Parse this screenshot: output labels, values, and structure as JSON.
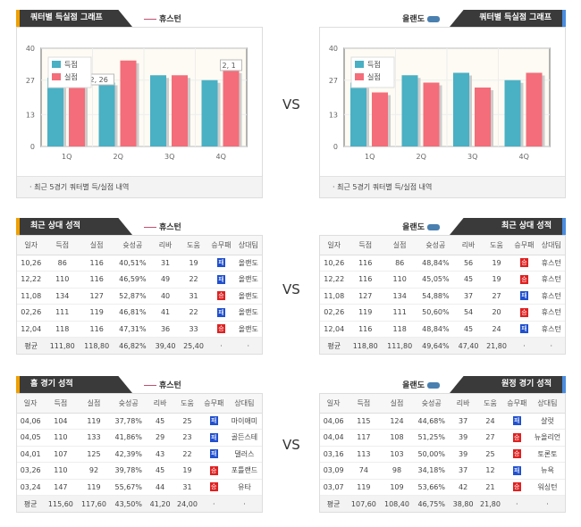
{
  "colors": {
    "scored": "#4ab0c4",
    "conceded": "#f46d7a",
    "win": "#e02020",
    "loss": "#2050d0"
  },
  "vs": "VS",
  "home_team": "휴스턴",
  "away_team": "올랜도",
  "chart_title": "쿼터별 득실점 그래프",
  "chart_footer": "· 최근 5경기 쿼터별 득/실점 내역",
  "columns": [
    "일자",
    "득점",
    "실점",
    "슛성공",
    "리바",
    "도움",
    "승무패",
    "상대팀"
  ],
  "chart_data": [
    {
      "type": "bar",
      "team": "휴스턴",
      "categories": [
        "1Q",
        "2Q",
        "3Q",
        "4Q"
      ],
      "yticks": [
        "0",
        "13",
        "27",
        "40"
      ],
      "ylim": [
        0,
        40
      ],
      "legend": [
        "득점",
        "실점"
      ],
      "series": [
        {
          "name": "득점",
          "values": [
            28,
            26,
            29,
            27
          ]
        },
        {
          "name": "실점",
          "values": [
            27,
            35,
            29,
            31
          ]
        }
      ],
      "annotations": [
        {
          "text": "2, 26",
          "cat": "2Q"
        },
        {
          "text": "2, 1",
          "cat": "4Q"
        }
      ]
    },
    {
      "type": "bar",
      "team": "올랜도",
      "categories": [
        "1Q",
        "2Q",
        "3Q",
        "4Q"
      ],
      "yticks": [
        "0",
        "13",
        "27",
        "40"
      ],
      "ylim": [
        0,
        40
      ],
      "legend": [
        "득점",
        "실점"
      ],
      "series": [
        {
          "name": "득점",
          "values": [
            26,
            29,
            30,
            27
          ]
        },
        {
          "name": "실점",
          "values": [
            22,
            26,
            24,
            30
          ]
        }
      ],
      "annotations": []
    }
  ],
  "tables": [
    {
      "title": "최근 상대 성적",
      "team": "휴스턴",
      "rows": [
        [
          "10,26",
          "86",
          "116",
          "40,51%",
          "31",
          "19",
          "패",
          "올랜도"
        ],
        [
          "12,22",
          "110",
          "116",
          "46,59%",
          "49",
          "22",
          "패",
          "올랜도"
        ],
        [
          "11,08",
          "134",
          "127",
          "52,87%",
          "40",
          "31",
          "승",
          "올랜도"
        ],
        [
          "02,26",
          "111",
          "119",
          "46,81%",
          "41",
          "22",
          "패",
          "올랜도"
        ],
        [
          "12,04",
          "118",
          "116",
          "47,31%",
          "36",
          "33",
          "승",
          "올랜도"
        ]
      ],
      "avg": [
        "평균",
        "111,80",
        "118,80",
        "46,82%",
        "39,40",
        "25,40",
        "·",
        "·"
      ]
    },
    {
      "title": "최근 상대 성적",
      "team": "올랜도",
      "rows": [
        [
          "10,26",
          "116",
          "86",
          "48,84%",
          "56",
          "19",
          "승",
          "휴스턴"
        ],
        [
          "12,22",
          "116",
          "110",
          "45,05%",
          "45",
          "19",
          "승",
          "휴스턴"
        ],
        [
          "11,08",
          "127",
          "134",
          "54,88%",
          "37",
          "27",
          "패",
          "휴스턴"
        ],
        [
          "02,26",
          "119",
          "111",
          "50,60%",
          "54",
          "20",
          "승",
          "휴스턴"
        ],
        [
          "12,04",
          "116",
          "118",
          "48,84%",
          "45",
          "24",
          "패",
          "휴스턴"
        ]
      ],
      "avg": [
        "평균",
        "118,80",
        "111,80",
        "49,64%",
        "47,40",
        "21,80",
        "·",
        "·"
      ]
    },
    {
      "title": "홈 경기 성적",
      "team": "휴스턴",
      "rows": [
        [
          "04,06",
          "104",
          "119",
          "37,78%",
          "45",
          "25",
          "패",
          "마이애미"
        ],
        [
          "04,05",
          "110",
          "133",
          "41,86%",
          "29",
          "23",
          "패",
          "골든스테"
        ],
        [
          "04,01",
          "107",
          "125",
          "42,39%",
          "43",
          "22",
          "패",
          "댈러스"
        ],
        [
          "03,26",
          "110",
          "92",
          "39,78%",
          "45",
          "19",
          "승",
          "포틀랜드"
        ],
        [
          "03,24",
          "147",
          "119",
          "55,67%",
          "44",
          "31",
          "승",
          "유타"
        ]
      ],
      "avg": [
        "평균",
        "115,60",
        "117,60",
        "43,50%",
        "41,20",
        "24,00",
        "·",
        "·"
      ]
    },
    {
      "title": "원정 경기 성적",
      "team": "올랜도",
      "rows": [
        [
          "04,06",
          "115",
          "124",
          "44,68%",
          "37",
          "24",
          "패",
          "샬럿"
        ],
        [
          "04,04",
          "117",
          "108",
          "51,25%",
          "39",
          "27",
          "승",
          "뉴올리언"
        ],
        [
          "03,16",
          "113",
          "103",
          "50,00%",
          "39",
          "25",
          "승",
          "토론토"
        ],
        [
          "03,09",
          "74",
          "98",
          "34,18%",
          "37",
          "12",
          "패",
          "뉴욕"
        ],
        [
          "03,07",
          "119",
          "109",
          "53,66%",
          "42",
          "21",
          "승",
          "워싱턴"
        ]
      ],
      "avg": [
        "평균",
        "107,60",
        "108,40",
        "46,75%",
        "38,80",
        "21,80",
        "·",
        "·"
      ]
    }
  ]
}
